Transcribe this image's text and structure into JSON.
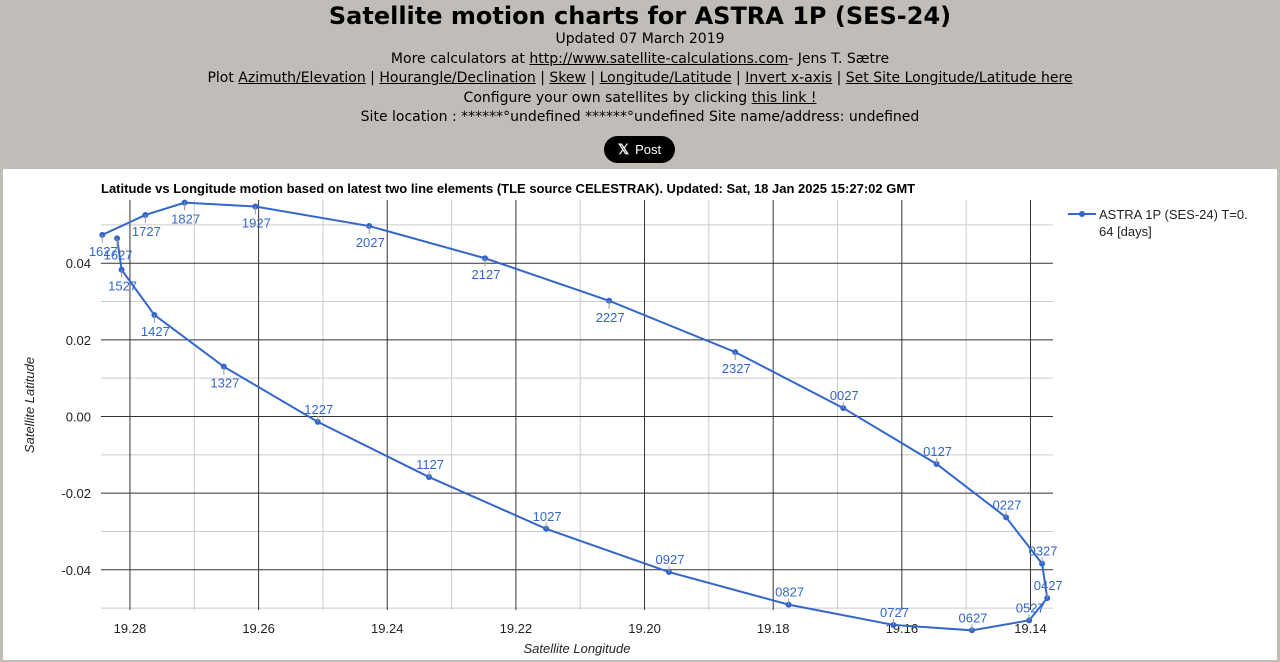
{
  "header": {
    "title": "Satellite motion charts for ASTRA 1P (SES-24)",
    "updated": "Updated 07 March 2019",
    "more_prefix": "More calculators at ",
    "more_link": "http://www.satellite-calculations.com",
    "more_suffix": "- Jens T. Sætre",
    "plot_prefix": "Plot ",
    "sep": " | ",
    "links": [
      "Azimuth/Elevation",
      "Hourangle/Declination",
      "Skew",
      "Longitude/Latitude",
      "Invert x-axis",
      "Set Site Longitude/Latitude here"
    ],
    "configure_prefix": "Configure your own satellites by clicking ",
    "configure_link": "this link !",
    "site_location": "Site location : ******°undefined ******°undefined Site name/address: undefined"
  },
  "share_button": {
    "icon": "x-logo-icon",
    "label": "Post"
  },
  "chart_data": {
    "type": "line",
    "title": "Latitude vs Longitude motion based on latest two line elements (TLE source CELESTRAK). Updated: Sat, 18 Jan 2025 15:27:02 GMT",
    "xlabel": "Satellite Longitude",
    "ylabel": "Satellite Latitude",
    "xlim": [
      19.2845,
      19.1365
    ],
    "ylim": [
      -0.0505,
      0.0565
    ],
    "x_inverted": true,
    "xticks": [
      "19.28",
      "19.26",
      "19.24",
      "19.22",
      "19.20",
      "19.18",
      "19.16",
      "19.14"
    ],
    "xtick_values": [
      19.28,
      19.26,
      19.24,
      19.22,
      19.2,
      19.18,
      19.16,
      19.14
    ],
    "yticks": [
      "0.04",
      "0.02",
      "0.00",
      "-0.02",
      "-0.04"
    ],
    "ytick_values": [
      0.04,
      0.02,
      0.0,
      -0.02,
      -0.04
    ],
    "grid": true,
    "line_color": "#3366cc",
    "legend_position": "right",
    "series": [
      {
        "name": "ASTRA 1P (SES-24) T=0.64 [days]",
        "legend_lines": [
          "ASTRA 1P (SES-24) T=0.",
          "64 [days]"
        ],
        "points": [
          {
            "label": "1627",
            "x": 19.2843,
            "y": 0.0474
          },
          {
            "label": "1727",
            "x": 19.2776,
            "y": 0.0526
          },
          {
            "label": "1827",
            "x": 19.2715,
            "y": 0.0558
          },
          {
            "label": "1927",
            "x": 19.2605,
            "y": 0.0548
          },
          {
            "label": "2027",
            "x": 19.2428,
            "y": 0.0497
          },
          {
            "label": "2127",
            "x": 19.2248,
            "y": 0.0413
          },
          {
            "label": "2227",
            "x": 19.2055,
            "y": 0.0302
          },
          {
            "label": "2327",
            "x": 19.1859,
            "y": 0.0168
          },
          {
            "label": "0027",
            "x": 19.1691,
            "y": 0.0022
          },
          {
            "label": "0127",
            "x": 19.1546,
            "y": -0.0124
          },
          {
            "label": "0227",
            "x": 19.1438,
            "y": -0.0263
          },
          {
            "label": "0327",
            "x": 19.1382,
            "y": -0.0384
          },
          {
            "label": "0427",
            "x": 19.1374,
            "y": -0.0474
          },
          {
            "label": "0527",
            "x": 19.1402,
            "y": -0.0532
          },
          {
            "label": "0627",
            "x": 19.1491,
            "y": -0.0558
          },
          {
            "label": "0727",
            "x": 19.1613,
            "y": -0.0544
          },
          {
            "label": "0827",
            "x": 19.1776,
            "y": -0.0491
          },
          {
            "label": "0927",
            "x": 19.1962,
            "y": -0.0406
          },
          {
            "label": "1027",
            "x": 19.2153,
            "y": -0.0293
          },
          {
            "label": "1127",
            "x": 19.2335,
            "y": -0.0158
          },
          {
            "label": "1227",
            "x": 19.2508,
            "y": -0.0014
          },
          {
            "label": "1327",
            "x": 19.2654,
            "y": 0.013
          },
          {
            "label": "1427",
            "x": 19.2762,
            "y": 0.0265
          },
          {
            "label": "1527",
            "x": 19.2813,
            "y": 0.0383
          },
          {
            "label": "1627",
            "x": 19.282,
            "y": 0.0465
          }
        ]
      }
    ]
  }
}
